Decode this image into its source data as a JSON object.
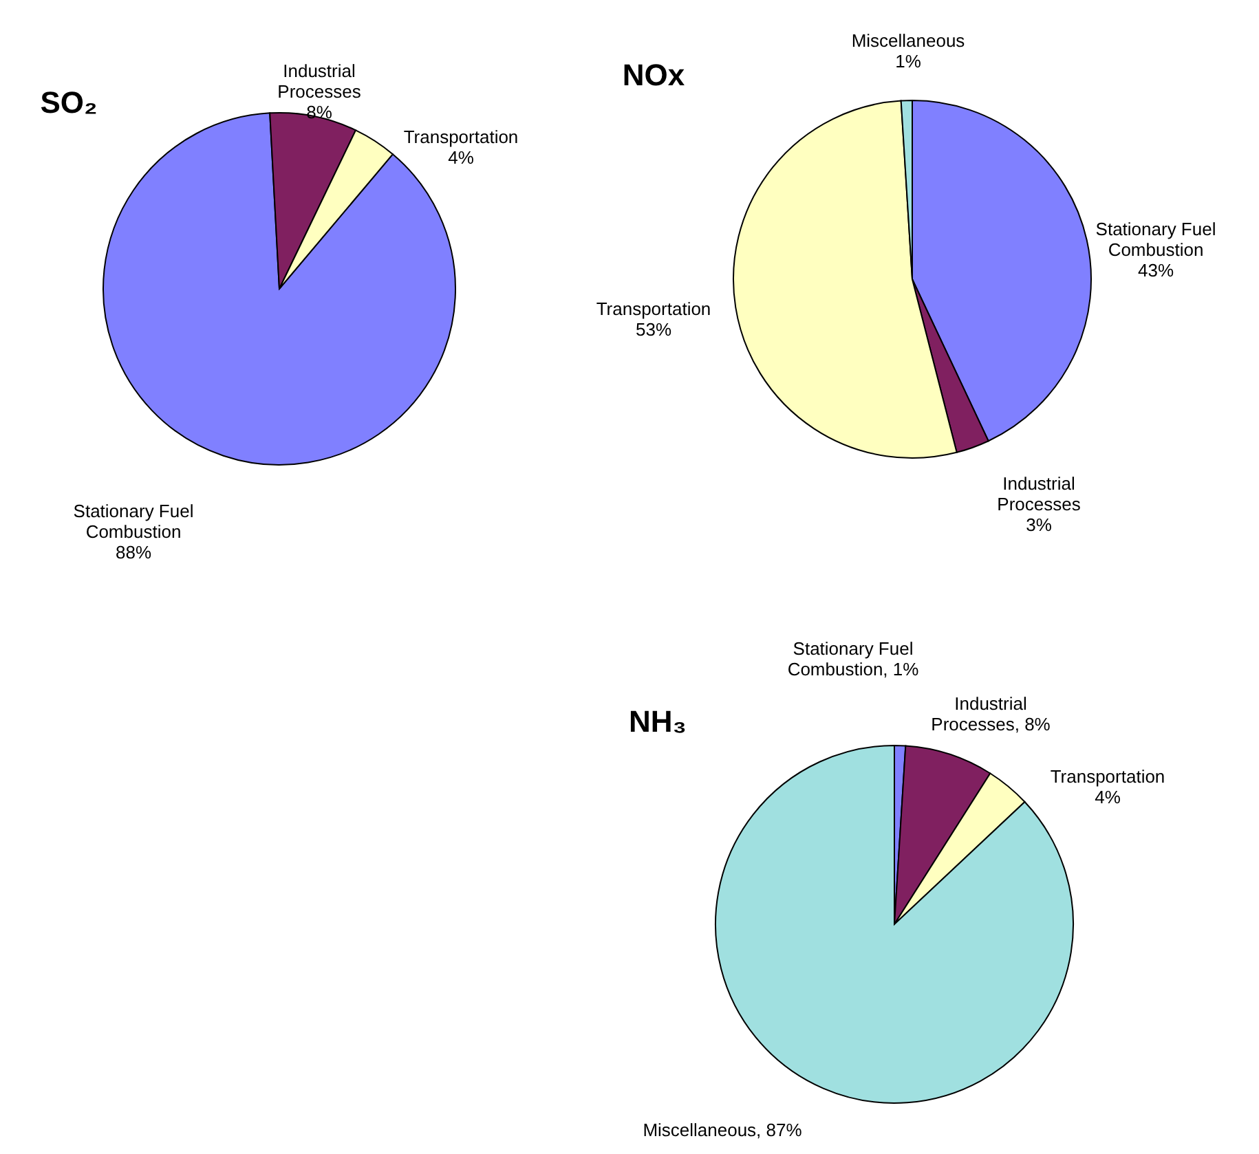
{
  "chart_data": [
    {
      "type": "pie",
      "title": "SO₂",
      "categories": [
        "Stationary Fuel Combustion",
        "Industrial Processes",
        "Transportation"
      ],
      "values": [
        88,
        8,
        4
      ],
      "value_labels": [
        "88%",
        "8%",
        "4%"
      ],
      "colors": [
        "#8080ff",
        "#802060",
        "#ffffc0"
      ]
    },
    {
      "type": "pie",
      "title": "NOx",
      "categories": [
        "Stationary Fuel Combustion",
        "Industrial Processes",
        "Transportation",
        "Miscellaneous"
      ],
      "values": [
        43,
        3,
        53,
        1
      ],
      "value_labels": [
        "43%",
        "3%",
        "53%",
        "1%"
      ],
      "colors": [
        "#8080ff",
        "#802060",
        "#ffffc0",
        "#a0e0e0"
      ]
    },
    {
      "type": "pie",
      "title": "NH₃",
      "categories": [
        "Stationary Fuel Combustion",
        "Industrial Processes",
        "Transportation",
        "Miscellaneous"
      ],
      "values": [
        1,
        8,
        4,
        87
      ],
      "value_labels": [
        "1%",
        "8%",
        "4%",
        "87%"
      ],
      "colors": [
        "#8080ff",
        "#802060",
        "#ffffc0",
        "#a0e0e0"
      ]
    }
  ]
}
